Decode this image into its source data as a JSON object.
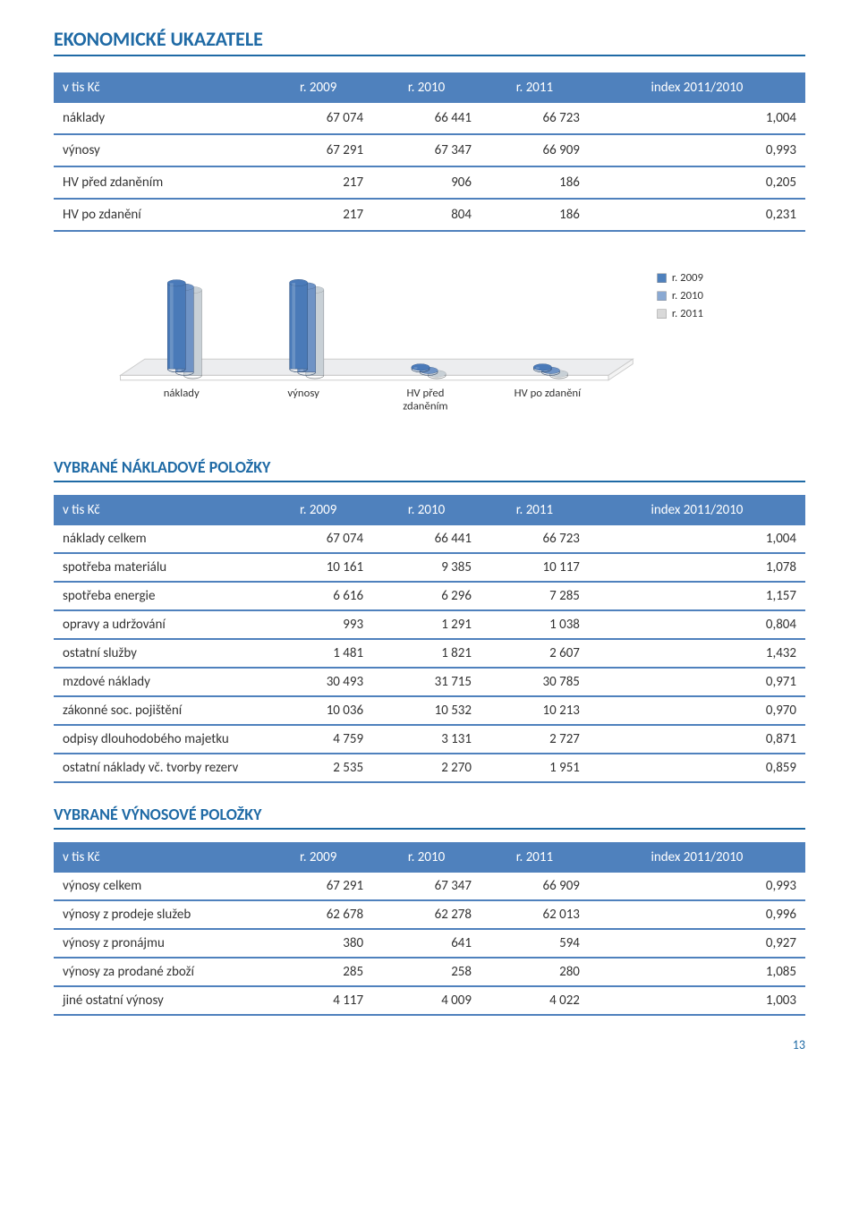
{
  "title": "EKONOMICKÉ UKAZATELE",
  "page_number": "13",
  "table1": {
    "headers": [
      "v tis Kč",
      "r. 2009",
      "r. 2010",
      "r. 2011",
      "index 2011/2010"
    ],
    "rows": [
      [
        "náklady",
        "67 074",
        "66 441",
        "66 723",
        "1,004"
      ],
      [
        "výnosy",
        "67 291",
        "67 347",
        "66 909",
        "0,993"
      ],
      [
        "HV před zdaněním",
        "217",
        "906",
        "186",
        "0,205"
      ],
      [
        "HV po zdanění",
        "217",
        "804",
        "186",
        "0,231"
      ]
    ]
  },
  "chart": {
    "type": "bar-3d",
    "categories": [
      "náklady",
      "výnosy",
      "HV před\nzdaněním",
      "HV po zdanění"
    ],
    "series": [
      "r. 2009",
      "r. 2010",
      "r. 2011"
    ],
    "values": [
      [
        67074,
        66441,
        66723
      ],
      [
        67291,
        67347,
        66909
      ],
      [
        217,
        906,
        186
      ],
      [
        217,
        804,
        186
      ]
    ],
    "colors": [
      "#4a7ab8",
      "#6f93c5",
      "#c8d0d6"
    ],
    "legend_markers": [
      "#4f81bd",
      "#8aa9d3",
      "#d9d9d9"
    ],
    "platform_fill": "#ecedef",
    "platform_edge": "#c8c8c8",
    "max": 70000,
    "label_fontsize": 14,
    "label_color": "#333"
  },
  "section2_title": "VYBRANÉ NÁKLADOVÉ POLOŽKY",
  "table2": {
    "headers": [
      "v tis Kč",
      "r. 2009",
      "r. 2010",
      "r. 2011",
      "index 2011/2010"
    ],
    "rows": [
      [
        "náklady celkem",
        "67 074",
        "66 441",
        "66 723",
        "1,004"
      ],
      [
        "spotřeba materiálu",
        "10 161",
        "9 385",
        "10 117",
        "1,078"
      ],
      [
        "spotřeba energie",
        "6 616",
        "6 296",
        "7 285",
        "1,157"
      ],
      [
        "opravy a udržování",
        "993",
        "1 291",
        "1 038",
        "0,804"
      ],
      [
        "ostatní služby",
        "1 481",
        "1 821",
        "2 607",
        "1,432"
      ],
      [
        "mzdové náklady",
        "30 493",
        "31 715",
        "30 785",
        "0,971"
      ],
      [
        "zákonné soc. pojištění",
        "10 036",
        "10 532",
        "10 213",
        "0,970"
      ],
      [
        "odpisy dlouhodobého majetku",
        "4 759",
        "3 131",
        "2 727",
        "0,871"
      ],
      [
        "ostatní náklady vč. tvorby rezerv",
        "2 535",
        "2 270",
        "1 951",
        "0,859"
      ]
    ]
  },
  "section3_title": "VYBRANÉ VÝNOSOVÉ POLOŽKY",
  "table3": {
    "headers": [
      "v tis Kč",
      "r. 2009",
      "r. 2010",
      "r. 2011",
      "index 2011/2010"
    ],
    "rows": [
      [
        "výnosy celkem",
        "67 291",
        "67 347",
        "66 909",
        "0,993"
      ],
      [
        "výnosy z prodeje služeb",
        "62 678",
        "62 278",
        "62 013",
        "0,996"
      ],
      [
        "výnosy z pronájmu",
        "380",
        "641",
        "594",
        "0,927"
      ],
      [
        "výnosy za prodané zboží",
        "285",
        "258",
        "280",
        "1,085"
      ],
      [
        "jiné ostatní výnosy",
        "4 117",
        "4 009",
        "4 022",
        "1,003"
      ]
    ]
  }
}
